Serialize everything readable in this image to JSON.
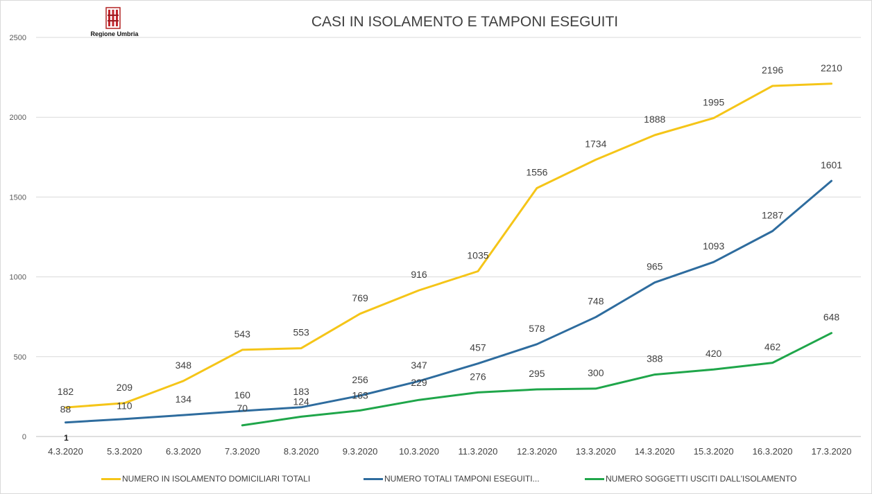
{
  "logo": {
    "text": "Regione Umbria",
    "name": "regione-umbria-logo"
  },
  "chart_data": {
    "type": "line",
    "title": "CASI IN ISOLAMENTO E TAMPONI ESEGUITI",
    "xlabel": "",
    "ylabel": "",
    "ylim": [
      0,
      2500
    ],
    "yticks": [
      0,
      500,
      1000,
      1500,
      2000,
      2500
    ],
    "grid": true,
    "legend_position": "bottom",
    "categories": [
      "4.3.2020",
      "5.3.2020",
      "6.3.2020",
      "7.3.2020",
      "8.3.2020",
      "9.3.2020",
      "10.3.2020",
      "11.3.2020",
      "12.3.2020",
      "13.3.2020",
      "14.3.2020",
      "15.3.2020",
      "16.3.2020",
      "17.3.2020"
    ],
    "series": [
      {
        "name": "NUMERO IN ISOLAMENTO DOMICILIARI TOTALI",
        "color": "#F5C518",
        "values": [
          182,
          209,
          348,
          543,
          553,
          769,
          916,
          1035,
          1556,
          1734,
          1888,
          1995,
          2196,
          2210
        ]
      },
      {
        "name": "NUMERO TOTALI TAMPONI ESEGUITI...",
        "color": "#2E6C9E",
        "values": [
          88,
          110,
          134,
          160,
          183,
          256,
          347,
          457,
          578,
          748,
          965,
          1093,
          1287,
          1601
        ]
      },
      {
        "name": "NUMERO SOGGETTI USCITI DALL'ISOLAMENTO",
        "color": "#1FA64A",
        "values": [
          null,
          null,
          null,
          70,
          124,
          163,
          229,
          276,
          295,
          300,
          388,
          420,
          462,
          648
        ]
      }
    ],
    "annotations": [
      {
        "category": "4.3.2020",
        "value": 1,
        "text": "1"
      }
    ]
  }
}
